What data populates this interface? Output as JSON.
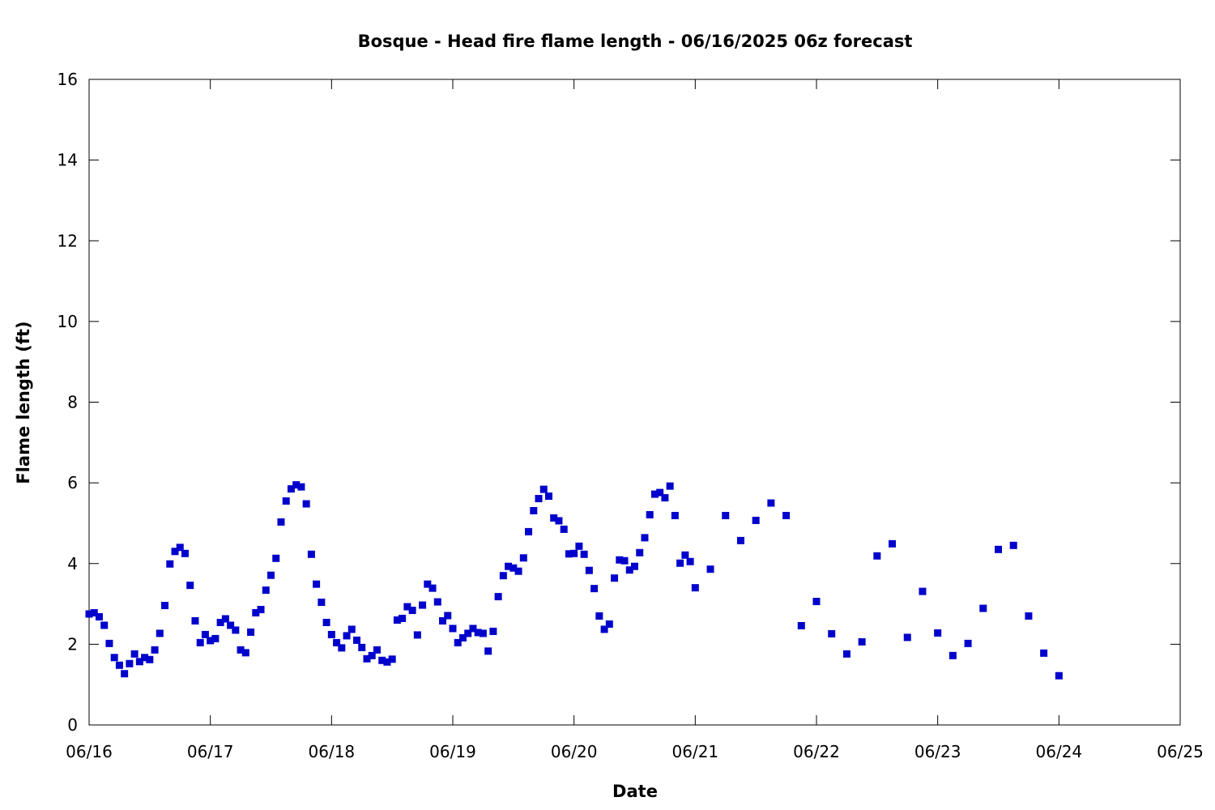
{
  "chart_data": {
    "type": "scatter",
    "title": "Bosque - Head fire flame length - 06/16/2025 06z forecast",
    "xlabel": "Date",
    "ylabel": "Flame length (ft)",
    "xlim": [
      "06/16",
      "06/25"
    ],
    "ylim": [
      0,
      16
    ],
    "grid": false,
    "legend": "none",
    "marker_color": "#0000cc",
    "x_ticks": [
      "06/16",
      "06/17",
      "06/18",
      "06/19",
      "06/20",
      "06/21",
      "06/22",
      "06/23",
      "06/24",
      "06/25"
    ],
    "y_ticks": [
      "0",
      "2",
      "4",
      "6",
      "8",
      "10",
      "12",
      "14",
      "16"
    ],
    "series": [
      {
        "points": [
          {
            "x": "06/16 00:00",
            "y": 2.75
          },
          {
            "x": "06/16 01:00",
            "y": 2.78
          },
          {
            "x": "06/16 02:00",
            "y": 2.68
          },
          {
            "x": "06/16 03:00",
            "y": 2.47
          },
          {
            "x": "06/16 04:00",
            "y": 2.02
          },
          {
            "x": "06/16 05:00",
            "y": 1.67
          },
          {
            "x": "06/16 06:00",
            "y": 1.48
          },
          {
            "x": "06/16 07:00",
            "y": 1.27
          },
          {
            "x": "06/16 08:00",
            "y": 1.52
          },
          {
            "x": "06/16 09:00",
            "y": 1.76
          },
          {
            "x": "06/16 10:00",
            "y": 1.57
          },
          {
            "x": "06/16 11:00",
            "y": 1.67
          },
          {
            "x": "06/16 12:00",
            "y": 1.62
          },
          {
            "x": "06/16 13:00",
            "y": 1.86
          },
          {
            "x": "06/16 14:00",
            "y": 2.27
          },
          {
            "x": "06/16 15:00",
            "y": 2.96
          },
          {
            "x": "06/16 16:00",
            "y": 3.99
          },
          {
            "x": "06/16 17:00",
            "y": 4.3
          },
          {
            "x": "06/16 18:00",
            "y": 4.4
          },
          {
            "x": "06/16 19:00",
            "y": 4.25
          },
          {
            "x": "06/16 20:00",
            "y": 3.46
          },
          {
            "x": "06/16 21:00",
            "y": 2.58
          },
          {
            "x": "06/16 22:00",
            "y": 2.04
          },
          {
            "x": "06/16 23:00",
            "y": 2.24
          },
          {
            "x": "06/17 00:00",
            "y": 2.09
          },
          {
            "x": "06/17 01:00",
            "y": 2.14
          },
          {
            "x": "06/17 02:00",
            "y": 2.54
          },
          {
            "x": "06/17 03:00",
            "y": 2.63
          },
          {
            "x": "06/17 04:00",
            "y": 2.47
          },
          {
            "x": "06/17 05:00",
            "y": 2.35
          },
          {
            "x": "06/17 06:00",
            "y": 1.86
          },
          {
            "x": "06/17 07:00",
            "y": 1.79
          },
          {
            "x": "06/17 08:00",
            "y": 2.3
          },
          {
            "x": "06/17 09:00",
            "y": 2.78
          },
          {
            "x": "06/17 10:00",
            "y": 2.86
          },
          {
            "x": "06/17 11:00",
            "y": 3.34
          },
          {
            "x": "06/17 12:00",
            "y": 3.71
          },
          {
            "x": "06/17 13:00",
            "y": 4.13
          },
          {
            "x": "06/17 14:00",
            "y": 5.03
          },
          {
            "x": "06/17 15:00",
            "y": 5.55
          },
          {
            "x": "06/17 16:00",
            "y": 5.85
          },
          {
            "x": "06/17 17:00",
            "y": 5.95
          },
          {
            "x": "06/17 18:00",
            "y": 5.9
          },
          {
            "x": "06/17 19:00",
            "y": 5.48
          },
          {
            "x": "06/17 20:00",
            "y": 4.23
          },
          {
            "x": "06/17 21:00",
            "y": 3.49
          },
          {
            "x": "06/17 22:00",
            "y": 3.04
          },
          {
            "x": "06/17 23:00",
            "y": 2.54
          },
          {
            "x": "06/18 00:00",
            "y": 2.24
          },
          {
            "x": "06/18 01:00",
            "y": 2.04
          },
          {
            "x": "06/18 02:00",
            "y": 1.91
          },
          {
            "x": "06/18 03:00",
            "y": 2.21
          },
          {
            "x": "06/18 04:00",
            "y": 2.37
          },
          {
            "x": "06/18 05:00",
            "y": 2.1
          },
          {
            "x": "06/18 06:00",
            "y": 1.92
          },
          {
            "x": "06/18 07:00",
            "y": 1.64
          },
          {
            "x": "06/18 08:00",
            "y": 1.72
          },
          {
            "x": "06/18 09:00",
            "y": 1.86
          },
          {
            "x": "06/18 10:00",
            "y": 1.6
          },
          {
            "x": "06/18 11:00",
            "y": 1.56
          },
          {
            "x": "06/18 12:00",
            "y": 1.63
          },
          {
            "x": "06/18 13:00",
            "y": 2.6
          },
          {
            "x": "06/18 14:00",
            "y": 2.64
          },
          {
            "x": "06/18 15:00",
            "y": 2.93
          },
          {
            "x": "06/18 16:00",
            "y": 2.84
          },
          {
            "x": "06/18 17:00",
            "y": 2.23
          },
          {
            "x": "06/18 18:00",
            "y": 2.97
          },
          {
            "x": "06/18 19:00",
            "y": 3.49
          },
          {
            "x": "06/18 20:00",
            "y": 3.39
          },
          {
            "x": "06/18 21:00",
            "y": 3.05
          },
          {
            "x": "06/18 22:00",
            "y": 2.58
          },
          {
            "x": "06/18 23:00",
            "y": 2.71
          },
          {
            "x": "06/19 00:00",
            "y": 2.39
          },
          {
            "x": "06/19 01:00",
            "y": 2.04
          },
          {
            "x": "06/19 02:00",
            "y": 2.16
          },
          {
            "x": "06/19 03:00",
            "y": 2.27
          },
          {
            "x": "06/19 04:00",
            "y": 2.39
          },
          {
            "x": "06/19 05:00",
            "y": 2.29
          },
          {
            "x": "06/19 06:00",
            "y": 2.27
          },
          {
            "x": "06/19 07:00",
            "y": 1.83
          },
          {
            "x": "06/19 08:00",
            "y": 2.32
          },
          {
            "x": "06/19 09:00",
            "y": 3.18
          },
          {
            "x": "06/19 10:00",
            "y": 3.7
          },
          {
            "x": "06/19 11:00",
            "y": 3.93
          },
          {
            "x": "06/19 12:00",
            "y": 3.89
          },
          {
            "x": "06/19 13:00",
            "y": 3.81
          },
          {
            "x": "06/19 14:00",
            "y": 4.14
          },
          {
            "x": "06/19 15:00",
            "y": 4.79
          },
          {
            "x": "06/19 16:00",
            "y": 5.31
          },
          {
            "x": "06/19 17:00",
            "y": 5.61
          },
          {
            "x": "06/19 18:00",
            "y": 5.84
          },
          {
            "x": "06/19 19:00",
            "y": 5.67
          },
          {
            "x": "06/19 20:00",
            "y": 5.13
          },
          {
            "x": "06/19 21:00",
            "y": 5.06
          },
          {
            "x": "06/19 22:00",
            "y": 4.85
          },
          {
            "x": "06/19 23:00",
            "y": 4.24
          },
          {
            "x": "06/20 00:00",
            "y": 4.25
          },
          {
            "x": "06/20 01:00",
            "y": 4.43
          },
          {
            "x": "06/20 02:00",
            "y": 4.23
          },
          {
            "x": "06/20 03:00",
            "y": 3.83
          },
          {
            "x": "06/20 04:00",
            "y": 3.38
          },
          {
            "x": "06/20 05:00",
            "y": 2.7
          },
          {
            "x": "06/20 06:00",
            "y": 2.37
          },
          {
            "x": "06/20 07:00",
            "y": 2.5
          },
          {
            "x": "06/20 08:00",
            "y": 3.64
          },
          {
            "x": "06/20 09:00",
            "y": 4.09
          },
          {
            "x": "06/20 10:00",
            "y": 4.07
          },
          {
            "x": "06/20 11:00",
            "y": 3.84
          },
          {
            "x": "06/20 12:00",
            "y": 3.93
          },
          {
            "x": "06/20 13:00",
            "y": 4.27
          },
          {
            "x": "06/20 14:00",
            "y": 4.64
          },
          {
            "x": "06/20 15:00",
            "y": 5.21
          },
          {
            "x": "06/20 16:00",
            "y": 5.72
          },
          {
            "x": "06/20 17:00",
            "y": 5.76
          },
          {
            "x": "06/20 18:00",
            "y": 5.63
          },
          {
            "x": "06/20 19:00",
            "y": 5.92
          },
          {
            "x": "06/20 20:00",
            "y": 5.19
          },
          {
            "x": "06/20 21:00",
            "y": 4.01
          },
          {
            "x": "06/20 22:00",
            "y": 4.21
          },
          {
            "x": "06/20 23:00",
            "y": 4.05
          },
          {
            "x": "06/21 00:00",
            "y": 3.4
          },
          {
            "x": "06/21 03:00",
            "y": 3.86
          },
          {
            "x": "06/21 06:00",
            "y": 5.19
          },
          {
            "x": "06/21 09:00",
            "y": 4.57
          },
          {
            "x": "06/21 12:00",
            "y": 5.07
          },
          {
            "x": "06/21 15:00",
            "y": 5.5
          },
          {
            "x": "06/21 18:00",
            "y": 5.19
          },
          {
            "x": "06/21 21:00",
            "y": 2.46
          },
          {
            "x": "06/22 00:00",
            "y": 3.06
          },
          {
            "x": "06/22 03:00",
            "y": 2.26
          },
          {
            "x": "06/22 06:00",
            "y": 1.76
          },
          {
            "x": "06/22 09:00",
            "y": 2.06
          },
          {
            "x": "06/22 12:00",
            "y": 4.19
          },
          {
            "x": "06/22 15:00",
            "y": 4.49
          },
          {
            "x": "06/22 18:00",
            "y": 2.17
          },
          {
            "x": "06/22 21:00",
            "y": 3.31
          },
          {
            "x": "06/23 00:00",
            "y": 2.28
          },
          {
            "x": "06/23 03:00",
            "y": 1.72
          },
          {
            "x": "06/23 06:00",
            "y": 2.02
          },
          {
            "x": "06/23 09:00",
            "y": 2.89
          },
          {
            "x": "06/23 12:00",
            "y": 4.35
          },
          {
            "x": "06/23 15:00",
            "y": 4.45
          },
          {
            "x": "06/23 18:00",
            "y": 2.7
          },
          {
            "x": "06/23 21:00",
            "y": 1.78
          },
          {
            "x": "06/24 00:00",
            "y": 1.22
          }
        ]
      }
    ]
  }
}
